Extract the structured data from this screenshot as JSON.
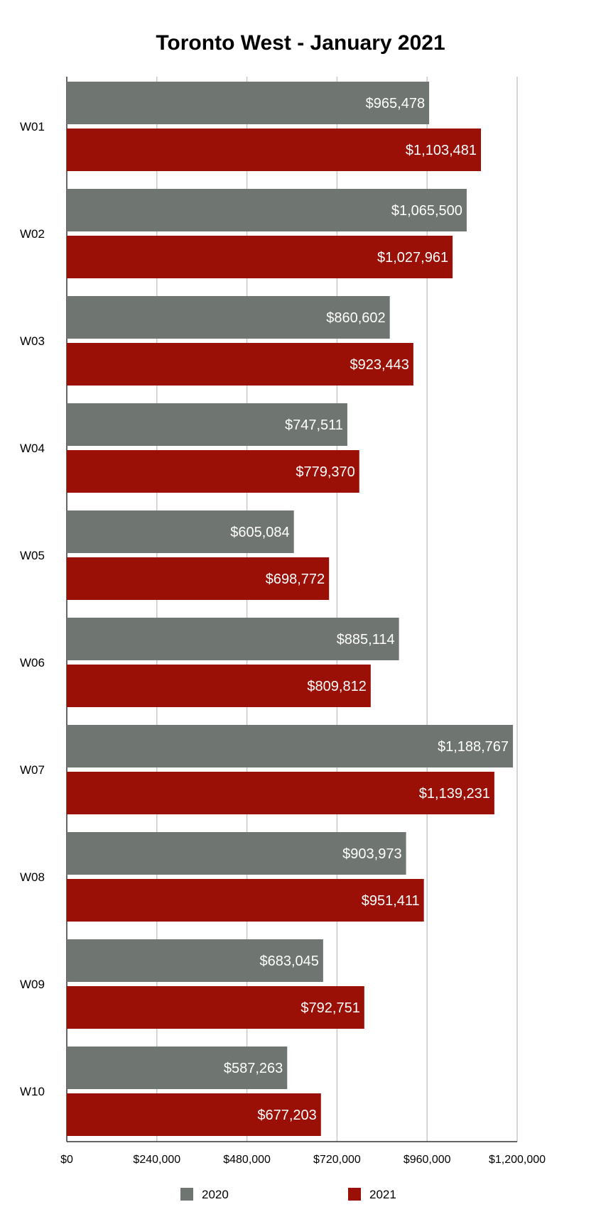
{
  "chart_data": {
    "type": "bar",
    "orientation": "horizontal",
    "title": "Toronto West - January 2021",
    "xlabel": "",
    "ylabel": "",
    "categories": [
      "W01",
      "W02",
      "W03",
      "W04",
      "W05",
      "W06",
      "W07",
      "W08",
      "W09",
      "W10"
    ],
    "series": [
      {
        "name": "2020",
        "color": "#6f7570",
        "values": [
          965478,
          1065500,
          860602,
          747511,
          605084,
          885114,
          1188767,
          903973,
          683045,
          587263
        ],
        "labels": [
          "$965,478",
          "$1,065,500",
          "$860,602",
          "$747,511",
          "$605,084",
          "$885,114",
          "$1,188,767",
          "$903,973",
          "$683,045",
          "$587,263"
        ]
      },
      {
        "name": "2021",
        "color": "#9b1006",
        "values": [
          1103481,
          1027961,
          923443,
          779370,
          698772,
          809812,
          1139231,
          951411,
          792751,
          677203
        ],
        "labels": [
          "$1,103,481",
          "$1,027,961",
          "$923,443",
          "$779,370",
          "$698,772",
          "$809,812",
          "$1,139,231",
          "$951,411",
          "$792,751",
          "$677,203"
        ]
      }
    ],
    "xlim": [
      0,
      1200000
    ],
    "x_ticks": [
      0,
      240000,
      480000,
      720000,
      960000,
      1200000
    ],
    "x_tick_labels": [
      "$0",
      "$240,000",
      "$480,000",
      "$720,000",
      "$960,000",
      "$1,200,000"
    ],
    "grid": true,
    "legend_position": "bottom"
  }
}
